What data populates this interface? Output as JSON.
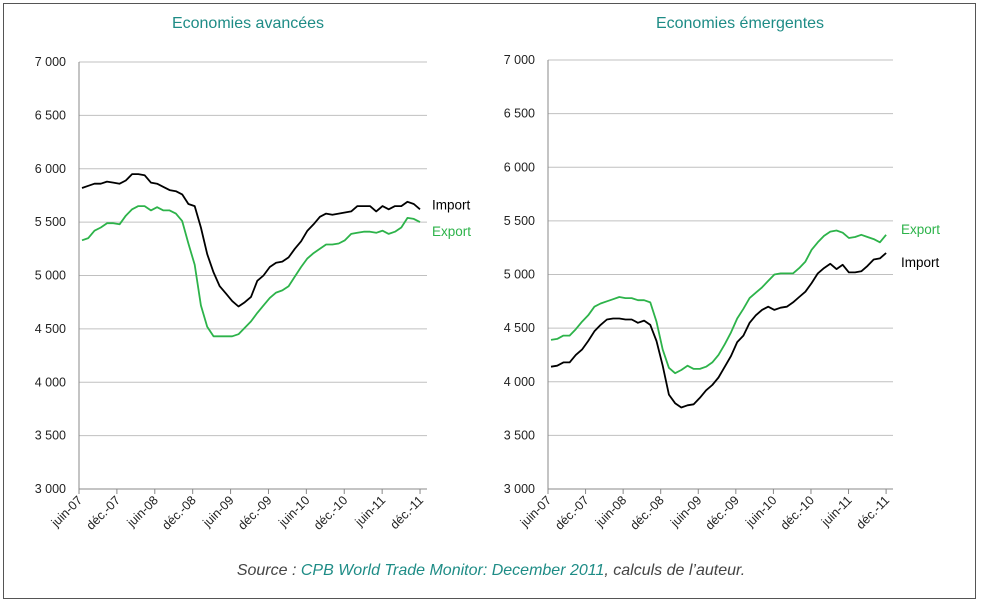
{
  "colors": {
    "import": "#000000",
    "export": "#2db34a",
    "title": "#1e8c86",
    "grid": "#c0c0c0"
  },
  "source": {
    "prefix": "Source : ",
    "highlight": "CPB World Trade Monitor: December 2011",
    "suffix": ", calculs de l’auteur."
  },
  "chart_data": [
    {
      "type": "line",
      "title": "Economies avancées",
      "ylim": [
        3000,
        7000
      ],
      "yticks": [
        3000,
        3500,
        4000,
        4500,
        5000,
        5500,
        6000,
        6500,
        7000
      ],
      "ytick_labels": [
        "3 000",
        "3 500",
        "4 000",
        "4 500",
        "5 000",
        "5 500",
        "6 000",
        "6 500",
        "7 000"
      ],
      "xtick_labels": [
        "juin-07",
        "déc.-07",
        "juin-08",
        "déc.-08",
        "juin-09",
        "déc.-09",
        "juin-10",
        "déc.-10",
        "juin-11",
        "déc.-11"
      ],
      "x_period": "monthly, juin-07 to déc.-11",
      "grid": true,
      "series": [
        {
          "name": "Import",
          "values": [
            5820,
            5840,
            5860,
            5860,
            5880,
            5870,
            5860,
            5890,
            5950,
            5950,
            5940,
            5870,
            5860,
            5830,
            5800,
            5790,
            5760,
            5670,
            5650,
            5450,
            5200,
            5030,
            4900,
            4830,
            4760,
            4710,
            4750,
            4800,
            4950,
            5000,
            5080,
            5120,
            5130,
            5170,
            5250,
            5320,
            5420,
            5480,
            5550,
            5580,
            5570,
            5580,
            5590,
            5600,
            5650,
            5650,
            5650,
            5600,
            5650,
            5620,
            5650,
            5650,
            5690,
            5670,
            5620
          ]
        },
        {
          "name": "Export",
          "values": [
            5330,
            5350,
            5420,
            5450,
            5490,
            5490,
            5480,
            5560,
            5620,
            5650,
            5650,
            5610,
            5640,
            5610,
            5610,
            5580,
            5510,
            5300,
            5100,
            4720,
            4520,
            4430,
            4430,
            4430,
            4430,
            4450,
            4510,
            4570,
            4650,
            4720,
            4790,
            4840,
            4860,
            4900,
            4990,
            5080,
            5160,
            5210,
            5250,
            5290,
            5290,
            5300,
            5330,
            5390,
            5400,
            5410,
            5410,
            5400,
            5420,
            5390,
            5410,
            5450,
            5540,
            5530,
            5500
          ]
        }
      ]
    },
    {
      "type": "line",
      "title": "Economies émergentes",
      "ylim": [
        3000,
        7000
      ],
      "yticks": [
        3000,
        3500,
        4000,
        4500,
        5000,
        5500,
        6000,
        6500,
        7000
      ],
      "ytick_labels": [
        "3 000",
        "3 500",
        "4 000",
        "4 500",
        "5 000",
        "5 500",
        "6 000",
        "6 500",
        "7 000"
      ],
      "xtick_labels": [
        "juin-07",
        "déc.-07",
        "juin-08",
        "déc.-08",
        "juin-09",
        "déc.-09",
        "juin-10",
        "déc.-10",
        "juin-11",
        "déc.-11"
      ],
      "x_period": "monthly, juin-07 to déc.-11",
      "grid": true,
      "series": [
        {
          "name": "Export",
          "values": [
            4390,
            4400,
            4430,
            4430,
            4490,
            4560,
            4620,
            4700,
            4730,
            4750,
            4770,
            4790,
            4780,
            4780,
            4760,
            4760,
            4740,
            4560,
            4300,
            4130,
            4080,
            4110,
            4150,
            4120,
            4120,
            4140,
            4180,
            4250,
            4350,
            4460,
            4590,
            4680,
            4780,
            4830,
            4880,
            4940,
            5000,
            5010,
            5010,
            5010,
            5060,
            5120,
            5230,
            5300,
            5360,
            5400,
            5410,
            5390,
            5340,
            5350,
            5370,
            5350,
            5330,
            5300,
            5370
          ]
        },
        {
          "name": "Import",
          "values": [
            4140,
            4150,
            4180,
            4180,
            4250,
            4300,
            4380,
            4470,
            4530,
            4580,
            4590,
            4590,
            4580,
            4580,
            4550,
            4570,
            4530,
            4380,
            4150,
            3880,
            3800,
            3760,
            3780,
            3790,
            3850,
            3920,
            3970,
            4040,
            4140,
            4240,
            4370,
            4430,
            4550,
            4620,
            4670,
            4700,
            4670,
            4690,
            4700,
            4740,
            4790,
            4840,
            4920,
            5010,
            5060,
            5100,
            5050,
            5090,
            5020,
            5020,
            5030,
            5080,
            5140,
            5150,
            5200
          ]
        }
      ]
    }
  ]
}
